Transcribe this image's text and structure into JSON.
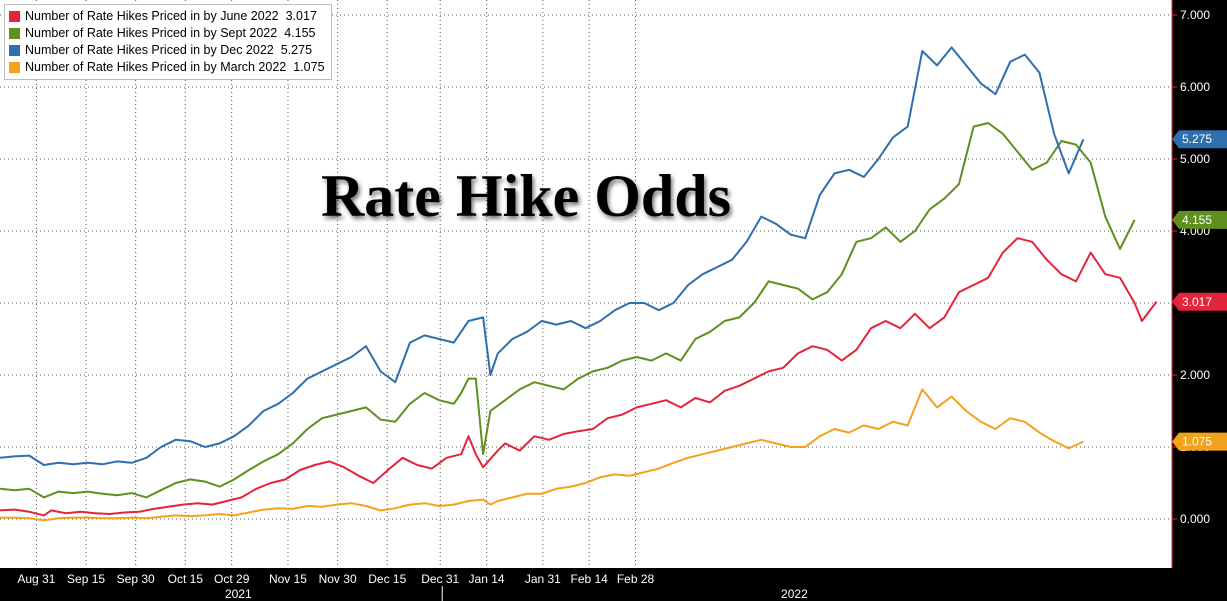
{
  "colors": {
    "background": "#ffffff",
    "grid": "#555555",
    "june": "#e3243b",
    "sept": "#5f8f1e",
    "dec": "#2f6fae",
    "march": "#f4a21c"
  },
  "overlay_title": "Rate Hike Odds",
  "chart_data": {
    "type": "line",
    "title": "Rate Hike Odds",
    "xlabel": "",
    "ylabel": "",
    "ylim": [
      -0.6,
      7.2
    ],
    "y_ticks": [
      "0.000",
      "1.000",
      "2.000",
      "3.000",
      "4.000",
      "5.000",
      "6.000",
      "7.000"
    ],
    "y_axis_side": "right",
    "grid": true,
    "legend_position": "top-left",
    "x_ticks": [
      "Aug 31",
      "Sep 15",
      "Sep 30",
      "Oct 15",
      "Oct 29",
      "Nov 15",
      "Nov 30",
      "Dec 15",
      "Dec 31",
      "Jan 14",
      "Jan 31",
      "Feb 14",
      "Feb 28"
    ],
    "x_years": [
      "2021",
      "2022"
    ],
    "x_start": "Aug 20 2021",
    "series": [
      {
        "name": "Number of Rate Hikes Priced in by June 2022",
        "last_value": "3.017",
        "color": "#e3243b",
        "points": [
          [
            0,
            0.12
          ],
          [
            4,
            0.13
          ],
          [
            8,
            0.1
          ],
          [
            12,
            0.05
          ],
          [
            14,
            0.12
          ],
          [
            18,
            0.08
          ],
          [
            22,
            0.1
          ],
          [
            26,
            0.08
          ],
          [
            30,
            0.07
          ],
          [
            34,
            0.09
          ],
          [
            38,
            0.1
          ],
          [
            42,
            0.14
          ],
          [
            46,
            0.17
          ],
          [
            50,
            0.2
          ],
          [
            54,
            0.22
          ],
          [
            58,
            0.2
          ],
          [
            62,
            0.25
          ],
          [
            66,
            0.3
          ],
          [
            70,
            0.42
          ],
          [
            74,
            0.5
          ],
          [
            78,
            0.55
          ],
          [
            82,
            0.68
          ],
          [
            86,
            0.75
          ],
          [
            90,
            0.8
          ],
          [
            94,
            0.72
          ],
          [
            98,
            0.6
          ],
          [
            102,
            0.5
          ],
          [
            106,
            0.68
          ],
          [
            110,
            0.85
          ],
          [
            114,
            0.75
          ],
          [
            118,
            0.7
          ],
          [
            122,
            0.85
          ],
          [
            126,
            0.9
          ],
          [
            128,
            1.15
          ],
          [
            130,
            0.9
          ],
          [
            132,
            0.72
          ],
          [
            136,
            0.95
          ],
          [
            138,
            1.05
          ],
          [
            142,
            0.95
          ],
          [
            146,
            1.15
          ],
          [
            150,
            1.1
          ],
          [
            154,
            1.18
          ],
          [
            158,
            1.22
          ],
          [
            162,
            1.25
          ],
          [
            166,
            1.4
          ],
          [
            170,
            1.45
          ],
          [
            174,
            1.55
          ],
          [
            178,
            1.6
          ],
          [
            182,
            1.65
          ],
          [
            186,
            1.55
          ],
          [
            190,
            1.68
          ],
          [
            194,
            1.62
          ],
          [
            198,
            1.78
          ],
          [
            202,
            1.85
          ],
          [
            206,
            1.95
          ],
          [
            210,
            2.05
          ],
          [
            214,
            2.1
          ],
          [
            218,
            2.3
          ],
          [
            222,
            2.4
          ],
          [
            226,
            2.35
          ],
          [
            230,
            2.2
          ],
          [
            234,
            2.35
          ],
          [
            238,
            2.65
          ],
          [
            242,
            2.75
          ],
          [
            246,
            2.65
          ],
          [
            250,
            2.85
          ],
          [
            254,
            2.65
          ],
          [
            258,
            2.8
          ],
          [
            262,
            3.15
          ],
          [
            266,
            3.25
          ],
          [
            270,
            3.35
          ],
          [
            274,
            3.7
          ],
          [
            278,
            3.9
          ],
          [
            282,
            3.85
          ],
          [
            286,
            3.6
          ],
          [
            290,
            3.4
          ],
          [
            294,
            3.3
          ],
          [
            298,
            3.7
          ],
          [
            302,
            3.4
          ],
          [
            306,
            3.35
          ],
          [
            310,
            3.0
          ],
          [
            312,
            2.75
          ],
          [
            316,
            3.02
          ]
        ]
      },
      {
        "name": "Number of Rate Hikes Priced in by Sept 2022",
        "last_value": "4.155",
        "color": "#5f8f1e",
        "points": [
          [
            0,
            0.42
          ],
          [
            4,
            0.4
          ],
          [
            8,
            0.42
          ],
          [
            12,
            0.3
          ],
          [
            16,
            0.38
          ],
          [
            20,
            0.36
          ],
          [
            24,
            0.38
          ],
          [
            28,
            0.35
          ],
          [
            32,
            0.33
          ],
          [
            36,
            0.36
          ],
          [
            40,
            0.3
          ],
          [
            44,
            0.4
          ],
          [
            48,
            0.5
          ],
          [
            52,
            0.55
          ],
          [
            56,
            0.52
          ],
          [
            60,
            0.45
          ],
          [
            64,
            0.55
          ],
          [
            68,
            0.68
          ],
          [
            72,
            0.8
          ],
          [
            76,
            0.9
          ],
          [
            80,
            1.05
          ],
          [
            84,
            1.25
          ],
          [
            88,
            1.4
          ],
          [
            92,
            1.45
          ],
          [
            96,
            1.5
          ],
          [
            100,
            1.55
          ],
          [
            104,
            1.38
          ],
          [
            108,
            1.35
          ],
          [
            112,
            1.6
          ],
          [
            116,
            1.75
          ],
          [
            120,
            1.65
          ],
          [
            124,
            1.6
          ],
          [
            126,
            1.75
          ],
          [
            128,
            1.95
          ],
          [
            130,
            1.95
          ],
          [
            132,
            0.9
          ],
          [
            134,
            1.5
          ],
          [
            138,
            1.65
          ],
          [
            142,
            1.8
          ],
          [
            146,
            1.9
          ],
          [
            150,
            1.85
          ],
          [
            154,
            1.8
          ],
          [
            158,
            1.95
          ],
          [
            162,
            2.05
          ],
          [
            166,
            2.1
          ],
          [
            170,
            2.2
          ],
          [
            174,
            2.25
          ],
          [
            178,
            2.2
          ],
          [
            182,
            2.3
          ],
          [
            186,
            2.2
          ],
          [
            190,
            2.5
          ],
          [
            194,
            2.6
          ],
          [
            198,
            2.75
          ],
          [
            202,
            2.8
          ],
          [
            206,
            3.0
          ],
          [
            210,
            3.3
          ],
          [
            214,
            3.25
          ],
          [
            218,
            3.2
          ],
          [
            222,
            3.05
          ],
          [
            226,
            3.15
          ],
          [
            230,
            3.4
          ],
          [
            234,
            3.85
          ],
          [
            238,
            3.9
          ],
          [
            242,
            4.05
          ],
          [
            246,
            3.85
          ],
          [
            250,
            4.0
          ],
          [
            254,
            4.3
          ],
          [
            258,
            4.45
          ],
          [
            262,
            4.65
          ],
          [
            266,
            5.45
          ],
          [
            270,
            5.5
          ],
          [
            274,
            5.35
          ],
          [
            278,
            5.1
          ],
          [
            282,
            4.85
          ],
          [
            286,
            4.95
          ],
          [
            290,
            5.25
          ],
          [
            294,
            5.2
          ],
          [
            298,
            4.95
          ],
          [
            302,
            4.2
          ],
          [
            306,
            3.75
          ],
          [
            310,
            4.155
          ]
        ]
      },
      {
        "name": "Number of Rate Hikes Priced in by Dec 2022",
        "last_value": "5.275",
        "color": "#2f6fae",
        "points": [
          [
            0,
            0.85
          ],
          [
            4,
            0.87
          ],
          [
            8,
            0.88
          ],
          [
            12,
            0.75
          ],
          [
            16,
            0.78
          ],
          [
            20,
            0.76
          ],
          [
            24,
            0.78
          ],
          [
            28,
            0.76
          ],
          [
            32,
            0.8
          ],
          [
            36,
            0.78
          ],
          [
            40,
            0.85
          ],
          [
            44,
            1.0
          ],
          [
            48,
            1.1
          ],
          [
            52,
            1.08
          ],
          [
            56,
            1.0
          ],
          [
            60,
            1.05
          ],
          [
            64,
            1.15
          ],
          [
            68,
            1.3
          ],
          [
            72,
            1.5
          ],
          [
            76,
            1.6
          ],
          [
            80,
            1.75
          ],
          [
            84,
            1.95
          ],
          [
            88,
            2.05
          ],
          [
            92,
            2.15
          ],
          [
            96,
            2.25
          ],
          [
            100,
            2.4
          ],
          [
            104,
            2.05
          ],
          [
            108,
            1.9
          ],
          [
            112,
            2.45
          ],
          [
            116,
            2.55
          ],
          [
            120,
            2.5
          ],
          [
            124,
            2.45
          ],
          [
            128,
            2.75
          ],
          [
            132,
            2.8
          ],
          [
            134,
            2.0
          ],
          [
            136,
            2.3
          ],
          [
            140,
            2.5
          ],
          [
            144,
            2.6
          ],
          [
            148,
            2.75
          ],
          [
            152,
            2.7
          ],
          [
            156,
            2.75
          ],
          [
            160,
            2.65
          ],
          [
            164,
            2.75
          ],
          [
            168,
            2.9
          ],
          [
            172,
            3.0
          ],
          [
            176,
            3.0
          ],
          [
            180,
            2.9
          ],
          [
            184,
            3.0
          ],
          [
            188,
            3.25
          ],
          [
            192,
            3.4
          ],
          [
            196,
            3.5
          ],
          [
            200,
            3.6
          ],
          [
            204,
            3.85
          ],
          [
            208,
            4.2
          ],
          [
            212,
            4.1
          ],
          [
            216,
            3.95
          ],
          [
            220,
            3.9
          ],
          [
            224,
            4.5
          ],
          [
            228,
            4.8
          ],
          [
            232,
            4.85
          ],
          [
            236,
            4.75
          ],
          [
            240,
            5.0
          ],
          [
            244,
            5.3
          ],
          [
            248,
            5.45
          ],
          [
            252,
            6.5
          ],
          [
            256,
            6.3
          ],
          [
            260,
            6.55
          ],
          [
            264,
            6.3
          ],
          [
            268,
            6.05
          ],
          [
            272,
            5.9
          ],
          [
            276,
            6.35
          ],
          [
            280,
            6.45
          ],
          [
            284,
            6.2
          ],
          [
            288,
            5.35
          ],
          [
            292,
            4.8
          ],
          [
            296,
            5.275
          ]
        ]
      },
      {
        "name": "Number of Rate Hikes Priced in by March 2022",
        "last_value": "1.075",
        "color": "#f4a21c",
        "points": [
          [
            0,
            0.02
          ],
          [
            4,
            0.02
          ],
          [
            8,
            0.01
          ],
          [
            12,
            -0.02
          ],
          [
            16,
            0.01
          ],
          [
            20,
            0.02
          ],
          [
            24,
            0.02
          ],
          [
            28,
            0.01
          ],
          [
            32,
            0.01
          ],
          [
            36,
            0.02
          ],
          [
            40,
            0.01
          ],
          [
            44,
            0.03
          ],
          [
            48,
            0.05
          ],
          [
            52,
            0.04
          ],
          [
            56,
            0.05
          ],
          [
            60,
            0.07
          ],
          [
            64,
            0.05
          ],
          [
            68,
            0.09
          ],
          [
            72,
            0.13
          ],
          [
            76,
            0.15
          ],
          [
            80,
            0.14
          ],
          [
            84,
            0.18
          ],
          [
            88,
            0.17
          ],
          [
            92,
            0.2
          ],
          [
            96,
            0.22
          ],
          [
            100,
            0.18
          ],
          [
            104,
            0.12
          ],
          [
            108,
            0.15
          ],
          [
            112,
            0.2
          ],
          [
            116,
            0.22
          ],
          [
            120,
            0.18
          ],
          [
            124,
            0.2
          ],
          [
            128,
            0.25
          ],
          [
            132,
            0.27
          ],
          [
            134,
            0.2
          ],
          [
            136,
            0.25
          ],
          [
            140,
            0.3
          ],
          [
            144,
            0.35
          ],
          [
            148,
            0.35
          ],
          [
            152,
            0.42
          ],
          [
            156,
            0.45
          ],
          [
            160,
            0.5
          ],
          [
            164,
            0.58
          ],
          [
            168,
            0.62
          ],
          [
            172,
            0.6
          ],
          [
            176,
            0.65
          ],
          [
            180,
            0.7
          ],
          [
            184,
            0.78
          ],
          [
            188,
            0.85
          ],
          [
            192,
            0.9
          ],
          [
            196,
            0.95
          ],
          [
            200,
            1.0
          ],
          [
            204,
            1.05
          ],
          [
            208,
            1.1
          ],
          [
            212,
            1.05
          ],
          [
            216,
            1.0
          ],
          [
            220,
            1.0
          ],
          [
            224,
            1.15
          ],
          [
            228,
            1.25
          ],
          [
            232,
            1.2
          ],
          [
            236,
            1.3
          ],
          [
            240,
            1.25
          ],
          [
            244,
            1.35
          ],
          [
            248,
            1.3
          ],
          [
            252,
            1.8
          ],
          [
            256,
            1.55
          ],
          [
            260,
            1.7
          ],
          [
            264,
            1.5
          ],
          [
            268,
            1.35
          ],
          [
            272,
            1.25
          ],
          [
            276,
            1.4
          ],
          [
            280,
            1.35
          ],
          [
            284,
            1.2
          ],
          [
            288,
            1.08
          ],
          [
            292,
            0.98
          ],
          [
            296,
            1.075
          ]
        ]
      }
    ]
  }
}
